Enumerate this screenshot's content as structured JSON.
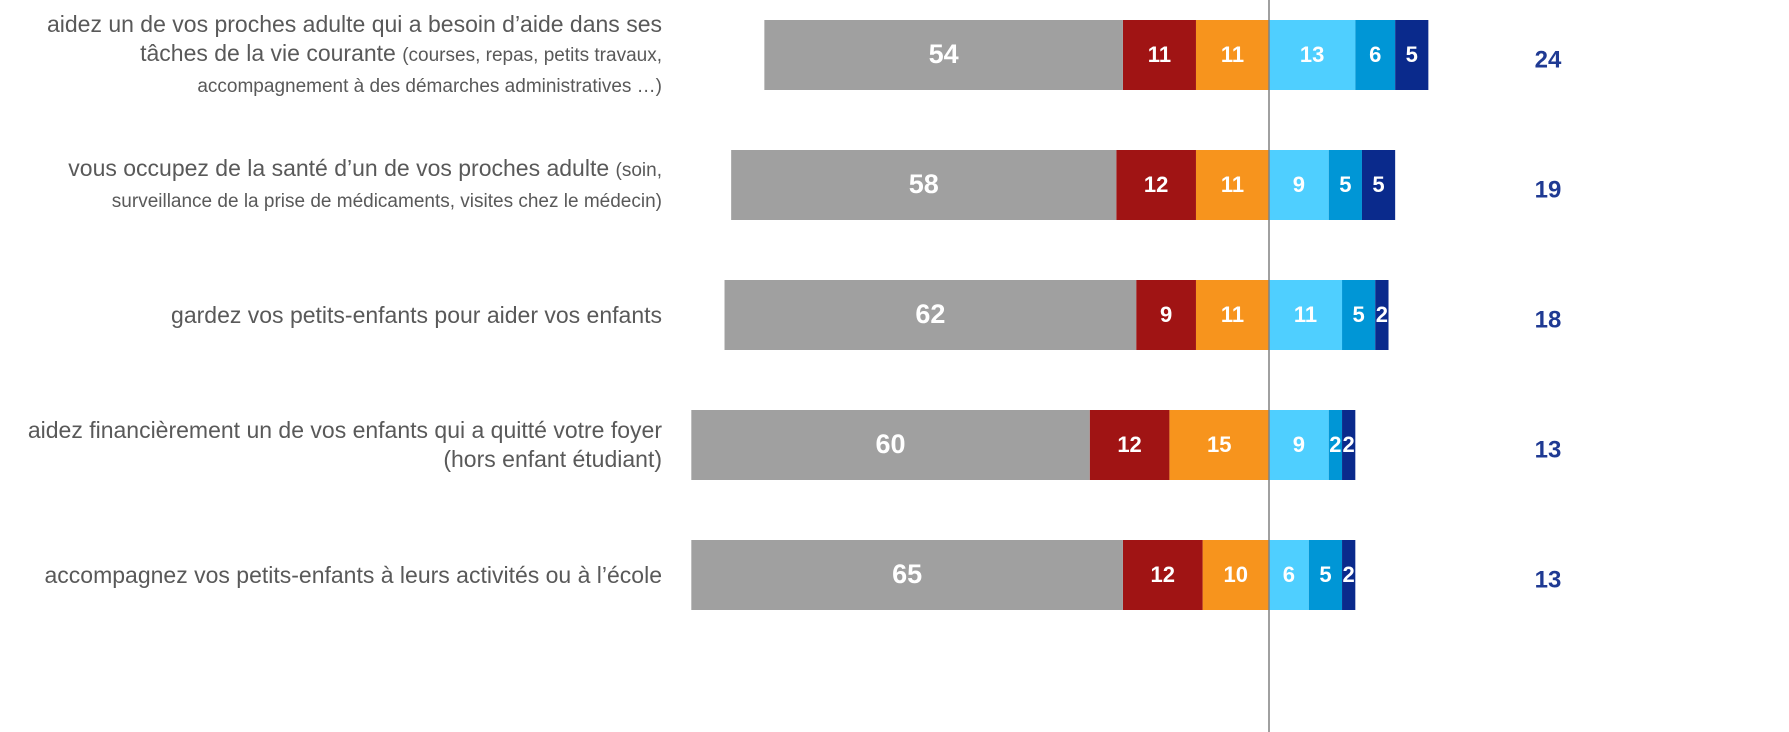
{
  "chart_data": {
    "type": "diverging-bar",
    "categories": [
      "aidez un de vos proches adulte qui a besoin d’aide dans ses tâches de la vie courante",
      "vous occupez de la santé d’un de vos proches adulte",
      "gardez vos petits-enfants pour aider vos enfants",
      "aidez financièrement un de vos enfants qui a quitté votre foyer (hors enfant étudiant)",
      "accompagnez vos petits-enfants à leurs activités ou à l’école"
    ],
    "category_details": [
      "(courses, repas, petits travaux, accompagnement à des démarches administratives …)",
      "(soin, surveillance de la prise de médicaments, visites chez le médecin)",
      null,
      null,
      null
    ],
    "series": [
      {
        "color": "#a0a0a0",
        "side": "left",
        "values": [
          54,
          58,
          62,
          60,
          65
        ]
      },
      {
        "color": "#a01414",
        "side": "left",
        "values": [
          11,
          12,
          9,
          12,
          12
        ]
      },
      {
        "color": "#f7941d",
        "side": "left",
        "values": [
          11,
          11,
          11,
          15,
          10
        ]
      },
      {
        "color": "#4fcfff",
        "side": "right",
        "values": [
          13,
          9,
          11,
          9,
          6
        ]
      },
      {
        "color": "#0096d6",
        "side": "right",
        "values": [
          6,
          5,
          5,
          2,
          5
        ]
      },
      {
        "color": "#0a2a8c",
        "side": "right",
        "values": [
          5,
          5,
          2,
          2,
          2
        ]
      }
    ],
    "totals": [
      24,
      19,
      18,
      13,
      13
    ],
    "totals_color": "#1f3a93"
  }
}
